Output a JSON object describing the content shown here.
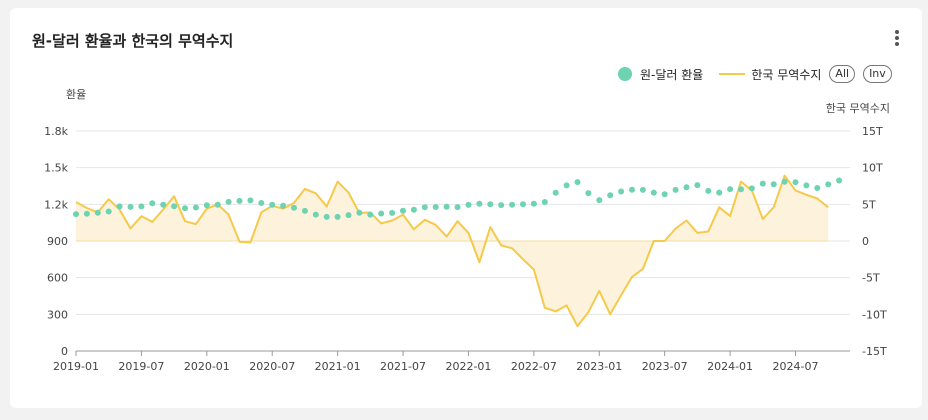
{
  "header": {
    "title": "원-달러 환율과 한국의 무역수지",
    "menu_icon": "more-vertical-icon"
  },
  "legend": {
    "rate_label": "원-달러 환율",
    "trade_label": "한국 무역수지",
    "all_label": "All",
    "inv_label": "Inv"
  },
  "colors": {
    "rate": "#6dd3b0",
    "trade": "#f5c94a",
    "trade_fill": "#fdf3dc",
    "grid": "#e6e6e6"
  },
  "chart_data": {
    "type": "line",
    "title": "원-달러 환율과 한국의 무역수지",
    "ylabel_left": "환율",
    "ylabel_right": "한국 무역수지",
    "x_tick_labels": [
      "2019-01",
      "2019-07",
      "2020-01",
      "2020-07",
      "2021-01",
      "2021-07",
      "2022-01",
      "2022-07",
      "2023-01",
      "2023-07",
      "2024-01",
      "2024-07"
    ],
    "y_left_ticks": [
      "0",
      "300",
      "600",
      "900",
      "1.2k",
      "1.5k",
      "1.8k"
    ],
    "y_right_ticks": [
      "-15T",
      "-10T",
      "-5T",
      "0",
      "5T",
      "10T",
      "15T"
    ],
    "y_left_range": [
      0,
      1800
    ],
    "y_right_range": [
      -15,
      15
    ],
    "start_month": "2019-01",
    "series": [
      {
        "name": "원-달러 환율",
        "axis": "left",
        "style": "dots",
        "values": [
          1120,
          1123,
          1131,
          1141,
          1183,
          1179,
          1183,
          1209,
          1196,
          1184,
          1168,
          1174,
          1193,
          1196,
          1220,
          1228,
          1232,
          1211,
          1197,
          1188,
          1172,
          1146,
          1116,
          1097,
          1097,
          1112,
          1131,
          1116,
          1125,
          1130,
          1147,
          1155,
          1176,
          1178,
          1180,
          1177,
          1195,
          1205,
          1200,
          1194,
          1196,
          1200,
          1204,
          1219,
          1295,
          1355,
          1382,
          1292,
          1235,
          1275,
          1305,
          1320,
          1318,
          1296,
          1283,
          1318,
          1340,
          1357,
          1310,
          1296,
          1325,
          1323,
          1330,
          1370,
          1365,
          1385,
          1380,
          1355,
          1334,
          1363,
          1395
        ]
      },
      {
        "name": "한국 무역수지",
        "axis": "right",
        "style": "line",
        "values": [
          5.3,
          4.5,
          3.9,
          5.7,
          4.3,
          1.7,
          3.4,
          2.6,
          4.3,
          6.1,
          2.7,
          2.3,
          4.4,
          5.0,
          3.6,
          -0.1,
          -0.2,
          3.9,
          4.8,
          4.4,
          5.2,
          7.1,
          6.5,
          4.7,
          8.1,
          6.6,
          3.8,
          3.9,
          2.4,
          2.8,
          3.6,
          1.6,
          2.9,
          2.2,
          0.6,
          2.7,
          1.1,
          -2.9,
          1.9,
          -0.6,
          -1.0,
          -2.5,
          -3.9,
          -9.1,
          -9.6,
          -8.8,
          -11.6,
          -9.7,
          -6.8,
          -10.0,
          -7.4,
          -4.9,
          -3.8,
          0.0,
          0.0,
          1.7,
          2.8,
          1.1,
          1.3,
          4.6,
          3.4,
          8.1,
          6.9,
          3.0,
          4.6,
          8.9,
          6.9,
          6.3,
          5.8,
          4.6
        ]
      }
    ]
  }
}
